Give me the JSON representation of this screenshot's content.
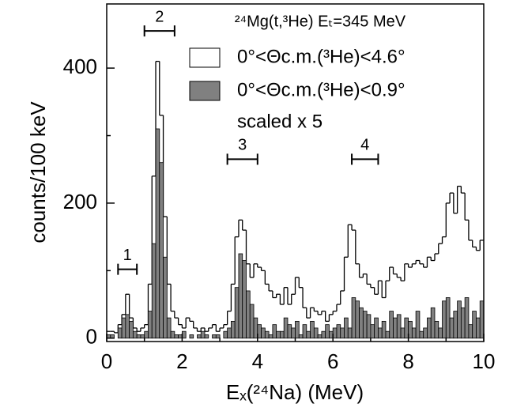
{
  "chart_data": {
    "type": "histogram",
    "title": "²⁴Mg(t,³He) Eₜ=345 MeV",
    "x_label": "Eₓ(²⁴Na) (MeV)",
    "y_label": "counts/100 keV",
    "bins": [
      0,
      0.1,
      0.2,
      0.3,
      0.4,
      0.5,
      0.6,
      0.7,
      0.8,
      0.9,
      1,
      1.1,
      1.2,
      1.3,
      1.4,
      1.5,
      1.6,
      1.7,
      1.8,
      1.9,
      2,
      2.1,
      2.2,
      2.3,
      2.4,
      2.5,
      2.6,
      2.7,
      2.8,
      2.9,
      3,
      3.1,
      3.2,
      3.3,
      3.4,
      3.5,
      3.6,
      3.7,
      3.8,
      3.9,
      4,
      4.1,
      4.2,
      4.3,
      4.4,
      4.5,
      4.6,
      4.7,
      4.8,
      4.9,
      5,
      5.1,
      5.2,
      5.3,
      5.4,
      5.5,
      5.6,
      5.7,
      5.8,
      5.9,
      6,
      6.1,
      6.2,
      6.3,
      6.4,
      6.5,
      6.6,
      6.7,
      6.8,
      6.9,
      7,
      7.1,
      7.2,
      7.3,
      7.4,
      7.5,
      7.6,
      7.7,
      7.8,
      7.9,
      8,
      8.1,
      8.2,
      8.3,
      8.4,
      8.5,
      8.6,
      8.7,
      8.8,
      8.9,
      9,
      9.1,
      9.2,
      9.3,
      9.4,
      9.5,
      9.6,
      9.7,
      9.8,
      9.9,
      10
    ],
    "series": [
      {
        "name": "0°<Θc.m.(³He)<4.6°",
        "style": "outline",
        "color": "#000000",
        "values": [
          10,
          10,
          8,
          20,
          35,
          65,
          30,
          15,
          10,
          15,
          20,
          80,
          240,
          410,
          330,
          180,
          80,
          40,
          30,
          20,
          15,
          30,
          25,
          15,
          10,
          15,
          10,
          15,
          20,
          10,
          15,
          20,
          40,
          80,
          150,
          175,
          160,
          110,
          90,
          110,
          105,
          100,
          80,
          70,
          60,
          65,
          50,
          75,
          50,
          65,
          90,
          75,
          45,
          30,
          45,
          40,
          35,
          40,
          25,
          35,
          40,
          50,
          70,
          120,
          168,
          160,
          110,
          90,
          95,
          80,
          75,
          65,
          85,
          60,
          85,
          105,
          95,
          90,
          85,
          110,
          105,
          110,
          115,
          110,
          105,
          120,
          115,
          125,
          140,
          150,
          200,
          215,
          185,
          225,
          215,
          175,
          145,
          135,
          130,
          145
        ]
      },
      {
        "name": "0°<Θc.m.(³He)<0.9°",
        "style": "filled",
        "color": "#808080",
        "values": [
          5,
          5,
          0,
          15,
          30,
          35,
          25,
          10,
          5,
          5,
          10,
          40,
          140,
          310,
          260,
          120,
          30,
          10,
          5,
          5,
          10,
          0,
          5,
          0,
          5,
          10,
          5,
          0,
          5,
          5,
          0,
          10,
          15,
          25,
          75,
          125,
          115,
          70,
          50,
          30,
          20,
          15,
          10,
          5,
          20,
          10,
          10,
          30,
          20,
          15,
          25,
          5,
          20,
          10,
          25,
          15,
          5,
          10,
          20,
          10,
          15,
          20,
          15,
          30,
          15,
          60,
          55,
          45,
          40,
          35,
          20,
          30,
          15,
          25,
          10,
          40,
          30,
          35,
          15,
          30,
          25,
          15,
          40,
          10,
          15,
          30,
          45,
          25,
          15,
          55,
          60,
          30,
          40,
          55,
          45,
          60,
          20,
          40,
          30,
          55
        ]
      }
    ],
    "legend_note": "scaled x 5",
    "annotations": [
      {
        "text": "1",
        "x0": 0.3,
        "x1": 0.8,
        "y": 102
      },
      {
        "text": "2",
        "x0": 1.0,
        "x1": 1.8,
        "y": 455
      },
      {
        "text": "3",
        "x0": 3.2,
        "x1": 4.0,
        "y": 265
      },
      {
        "text": "4",
        "x0": 6.5,
        "x1": 7.2,
        "y": 265
      }
    ],
    "xlim": [
      0,
      10
    ],
    "xticks": [
      0,
      2,
      4,
      6,
      8,
      10
    ],
    "xminorticks": [
      1,
      3,
      5,
      7,
      9
    ],
    "ylim": [
      -5,
      495
    ],
    "yticks": [
      0,
      200,
      400
    ],
    "yminorticks": [
      100,
      300
    ]
  }
}
